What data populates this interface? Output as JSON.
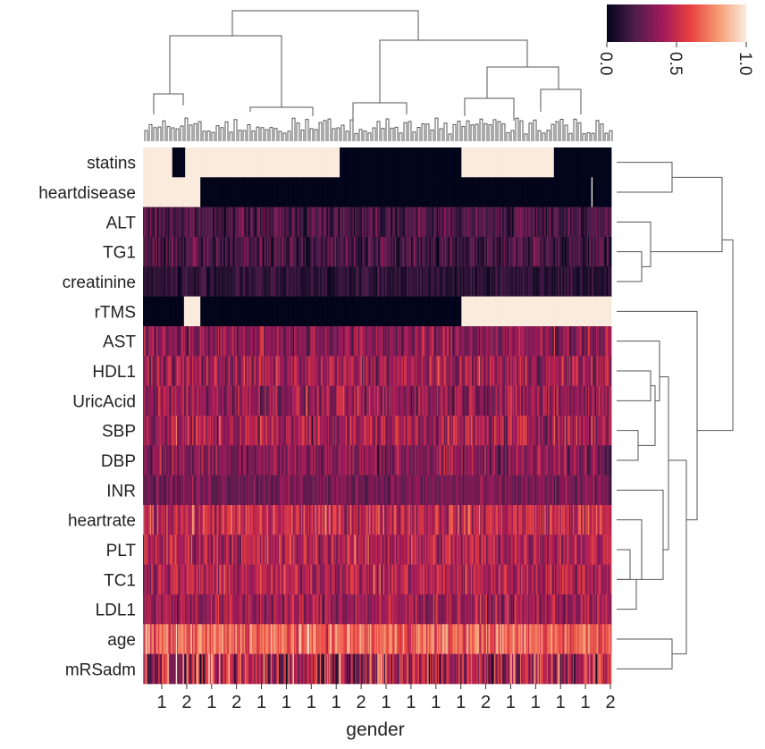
{
  "chart_data": {
    "type": "heatmap",
    "title": "",
    "xlabel": "gender",
    "ylabel": "",
    "x_tick_labels": [
      "1",
      "2",
      "1",
      "2",
      "1",
      "1",
      "1",
      "1",
      "2",
      "1",
      "1",
      "1",
      "1",
      "2",
      "1",
      "1",
      "1",
      "1",
      "2"
    ],
    "n_columns": 400,
    "rows": [
      {
        "label": "statins",
        "binary": true,
        "ones": [
          [
            0,
            25
          ],
          [
            36,
            168
          ],
          [
            272,
            351
          ]
        ]
      },
      {
        "label": "heartdisease",
        "binary": true,
        "ones": [
          [
            0,
            49
          ],
          [
            383,
            384
          ]
        ]
      },
      {
        "label": "ALT",
        "mean": 0.2,
        "spread": 0.12
      },
      {
        "label": "TG1",
        "mean": 0.18,
        "spread": 0.14
      },
      {
        "label": "creatinine",
        "mean": 0.12,
        "spread": 0.08
      },
      {
        "label": "rTMS",
        "binary": true,
        "ones": [
          [
            35,
            49
          ],
          [
            272,
            400
          ]
        ]
      },
      {
        "label": "AST",
        "mean": 0.35,
        "spread": 0.15
      },
      {
        "label": "HDL1",
        "mean": 0.4,
        "spread": 0.16
      },
      {
        "label": "UricAcid",
        "mean": 0.38,
        "spread": 0.16
      },
      {
        "label": "SBP",
        "mean": 0.42,
        "spread": 0.17
      },
      {
        "label": "DBP",
        "mean": 0.35,
        "spread": 0.15
      },
      {
        "label": "INR",
        "mean": 0.3,
        "spread": 0.1
      },
      {
        "label": "heartrate",
        "mean": 0.5,
        "spread": 0.17
      },
      {
        "label": "PLT",
        "mean": 0.45,
        "spread": 0.17
      },
      {
        "label": "TC1",
        "mean": 0.45,
        "spread": 0.15
      },
      {
        "label": "LDL1",
        "mean": 0.4,
        "spread": 0.15
      },
      {
        "label": "age",
        "mean": 0.68,
        "spread": 0.16
      },
      {
        "label": "mRSadm",
        "mean": 0.45,
        "spread": 0.3
      }
    ],
    "colorbar": {
      "ticks": [
        "0.0",
        "0.5",
        "1.0"
      ],
      "range": [
        0,
        1
      ],
      "colormap": [
        "#03051a",
        "#4c1d4b",
        "#a11a5b",
        "#e83f3f",
        "#f69c73",
        "#faebdd"
      ]
    }
  }
}
